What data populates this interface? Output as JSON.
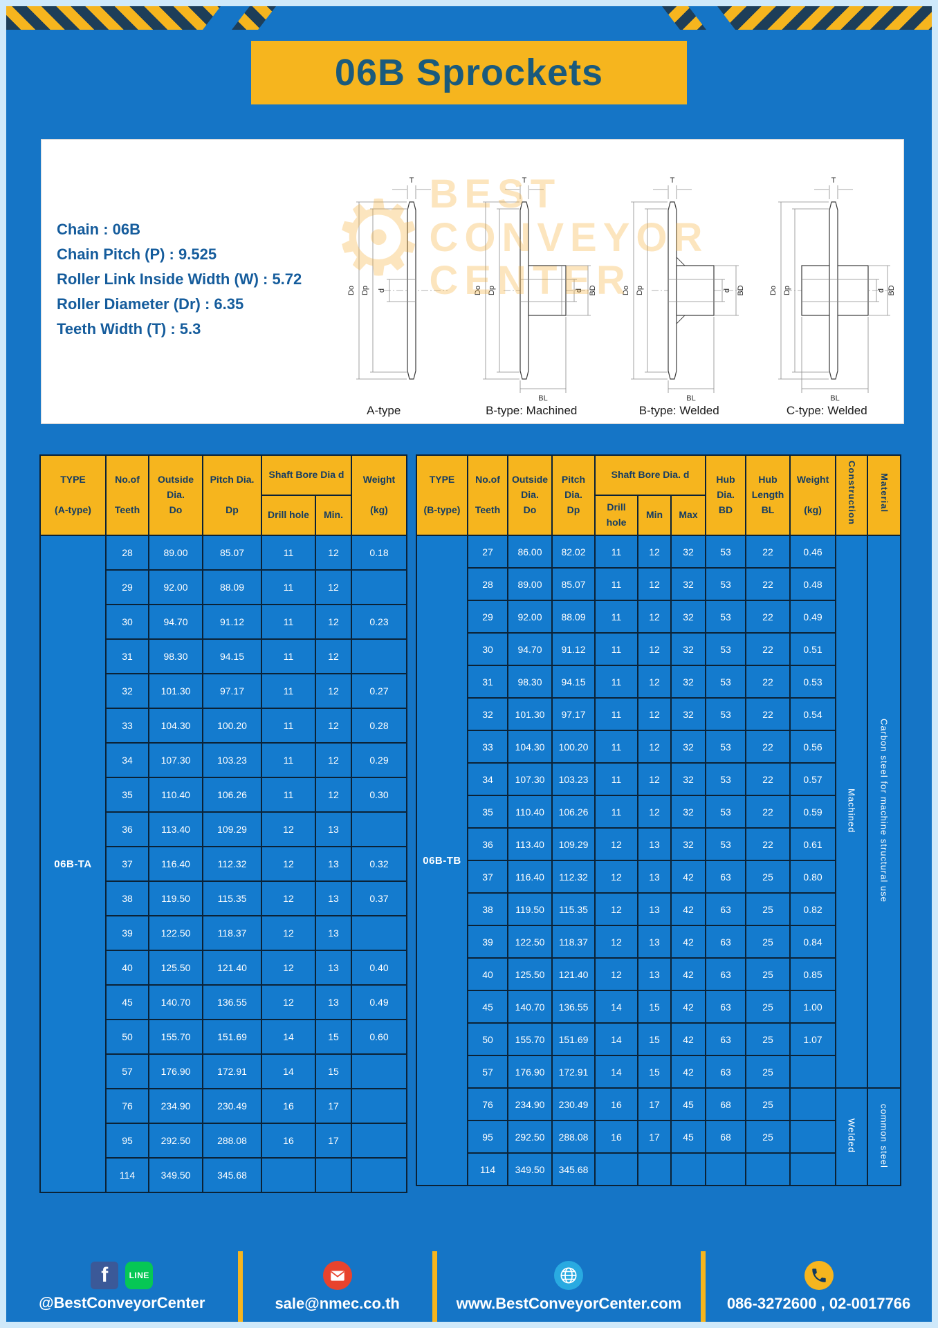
{
  "page_title": "06B Sprockets",
  "specs": [
    "Chain : 06B",
    "Chain Pitch (P) : 9.525",
    "Roller Link Inside Width (W) : 5.72",
    "Roller Diameter (Dr) : 6.35",
    "Teeth Width (T) : 5.3"
  ],
  "watermark": {
    "gear": "⚙",
    "lines": [
      "BEST",
      "CONVEYOR",
      "CENTER"
    ]
  },
  "diagrams": {
    "captions": [
      "A-type",
      "B-type: Machined",
      "B-type: Welded",
      "C-type: Welded"
    ],
    "dims": {
      "T": "T",
      "Do": "Do",
      "Dp": "Dp",
      "d": "d",
      "BD": "BD",
      "BL": "BL"
    }
  },
  "left_table": {
    "headers": {
      "type": "TYPE\n\n(A-type)",
      "teeth": "No.of\n\nTeeth",
      "outside": "Outside\nDia.\nDo",
      "pitch": "Pitch Dia.\n\nDp",
      "shaft_bore": "Shaft Bore Dia d",
      "drill": "Drill hole",
      "min": "Min.",
      "weight": "Weight\n\n(kg)"
    },
    "type_label": "06B-TA",
    "rows": [
      [
        "28",
        "89.00",
        "85.07",
        "11",
        "12",
        "0.18"
      ],
      [
        "29",
        "92.00",
        "88.09",
        "11",
        "12",
        ""
      ],
      [
        "30",
        "94.70",
        "91.12",
        "11",
        "12",
        "0.23"
      ],
      [
        "31",
        "98.30",
        "94.15",
        "11",
        "12",
        ""
      ],
      [
        "32",
        "101.30",
        "97.17",
        "11",
        "12",
        "0.27"
      ],
      [
        "33",
        "104.30",
        "100.20",
        "11",
        "12",
        "0.28"
      ],
      [
        "34",
        "107.30",
        "103.23",
        "11",
        "12",
        "0.29"
      ],
      [
        "35",
        "110.40",
        "106.26",
        "11",
        "12",
        "0.30"
      ],
      [
        "36",
        "113.40",
        "109.29",
        "12",
        "13",
        ""
      ],
      [
        "37",
        "116.40",
        "112.32",
        "12",
        "13",
        "0.32"
      ],
      [
        "38",
        "119.50",
        "115.35",
        "12",
        "13",
        "0.37"
      ],
      [
        "39",
        "122.50",
        "118.37",
        "12",
        "13",
        ""
      ],
      [
        "40",
        "125.50",
        "121.40",
        "12",
        "13",
        "0.40"
      ],
      [
        "45",
        "140.70",
        "136.55",
        "12",
        "13",
        "0.49"
      ],
      [
        "50",
        "155.70",
        "151.69",
        "14",
        "15",
        "0.60"
      ],
      [
        "57",
        "176.90",
        "172.91",
        "14",
        "15",
        ""
      ],
      [
        "76",
        "234.90",
        "230.49",
        "16",
        "17",
        ""
      ],
      [
        "95",
        "292.50",
        "288.08",
        "16",
        "17",
        ""
      ],
      [
        "114",
        "349.50",
        "345.68",
        "",
        "",
        ""
      ]
    ]
  },
  "right_table": {
    "headers": {
      "type": "TYPE\n\n(B-type)",
      "teeth": "No.of\n\nTeeth",
      "outside": "Outside\nDia.\nDo",
      "pitch": "Pitch\nDia.\nDp",
      "shaft_bore": "Shaft Bore Dia. d",
      "drill": "Drill hole",
      "min": "Min",
      "max": "Max",
      "hub_dia": "Hub\nDia.\nBD",
      "hub_len": "Hub\nLength\nBL",
      "weight": "Weight\n\n(kg)",
      "construction": "Construction",
      "material": "Material"
    },
    "type_label": "06B-TB",
    "rows": [
      [
        "27",
        "86.00",
        "82.02",
        "11",
        "12",
        "32",
        "53",
        "22",
        "0.46"
      ],
      [
        "28",
        "89.00",
        "85.07",
        "11",
        "12",
        "32",
        "53",
        "22",
        "0.48"
      ],
      [
        "29",
        "92.00",
        "88.09",
        "11",
        "12",
        "32",
        "53",
        "22",
        "0.49"
      ],
      [
        "30",
        "94.70",
        "91.12",
        "11",
        "12",
        "32",
        "53",
        "22",
        "0.51"
      ],
      [
        "31",
        "98.30",
        "94.15",
        "11",
        "12",
        "32",
        "53",
        "22",
        "0.53"
      ],
      [
        "32",
        "101.30",
        "97.17",
        "11",
        "12",
        "32",
        "53",
        "22",
        "0.54"
      ],
      [
        "33",
        "104.30",
        "100.20",
        "11",
        "12",
        "32",
        "53",
        "22",
        "0.56"
      ],
      [
        "34",
        "107.30",
        "103.23",
        "11",
        "12",
        "32",
        "53",
        "22",
        "0.57"
      ],
      [
        "35",
        "110.40",
        "106.26",
        "11",
        "12",
        "32",
        "53",
        "22",
        "0.59"
      ],
      [
        "36",
        "113.40",
        "109.29",
        "12",
        "13",
        "32",
        "53",
        "22",
        "0.61"
      ],
      [
        "37",
        "116.40",
        "112.32",
        "12",
        "13",
        "42",
        "63",
        "25",
        "0.80"
      ],
      [
        "38",
        "119.50",
        "115.35",
        "12",
        "13",
        "42",
        "63",
        "25",
        "0.82"
      ],
      [
        "39",
        "122.50",
        "118.37",
        "12",
        "13",
        "42",
        "63",
        "25",
        "0.84"
      ],
      [
        "40",
        "125.50",
        "121.40",
        "12",
        "13",
        "42",
        "63",
        "25",
        "0.85"
      ],
      [
        "45",
        "140.70",
        "136.55",
        "14",
        "15",
        "42",
        "63",
        "25",
        "1.00"
      ],
      [
        "50",
        "155.70",
        "151.69",
        "14",
        "15",
        "42",
        "63",
        "25",
        "1.07"
      ],
      [
        "57",
        "176.90",
        "172.91",
        "14",
        "15",
        "42",
        "63",
        "25",
        ""
      ],
      [
        "76",
        "234.90",
        "230.49",
        "16",
        "17",
        "45",
        "68",
        "25",
        ""
      ],
      [
        "95",
        "292.50",
        "288.08",
        "16",
        "17",
        "45",
        "68",
        "25",
        ""
      ],
      [
        "114",
        "349.50",
        "345.68",
        "",
        "",
        "",
        "",
        "",
        ""
      ]
    ],
    "span_cols": [
      {
        "name": "construction-cell",
        "spans": [
          {
            "label": "Machined",
            "start": 0,
            "span": 17
          },
          {
            "label": "Welded",
            "start": 17,
            "span": 3
          }
        ]
      },
      {
        "name": "material-cell",
        "spans": [
          {
            "label": "Carbon steel for machine structural use",
            "start": 0,
            "span": 17
          },
          {
            "label": "common steel",
            "start": 17,
            "span": 3
          }
        ]
      }
    ]
  },
  "footer": {
    "facebook_glyph": "f",
    "line_glyph": "LINE",
    "handle": "@BestConveyorCenter",
    "email": "sale@nmec.co.th",
    "website": "www.BestConveyorCenter.com",
    "phone": "086-3272600 , 02-0017766"
  },
  "colors": {
    "page_blue": "#1575c6",
    "cell_blue": "#147bce",
    "accent_yellow": "#f6b51e",
    "table_border": "#0b2236",
    "header_text": "#143c63",
    "title_text": "#1a5a7c",
    "spec_text": "#155c9c",
    "footer_text": "#ffffff"
  }
}
